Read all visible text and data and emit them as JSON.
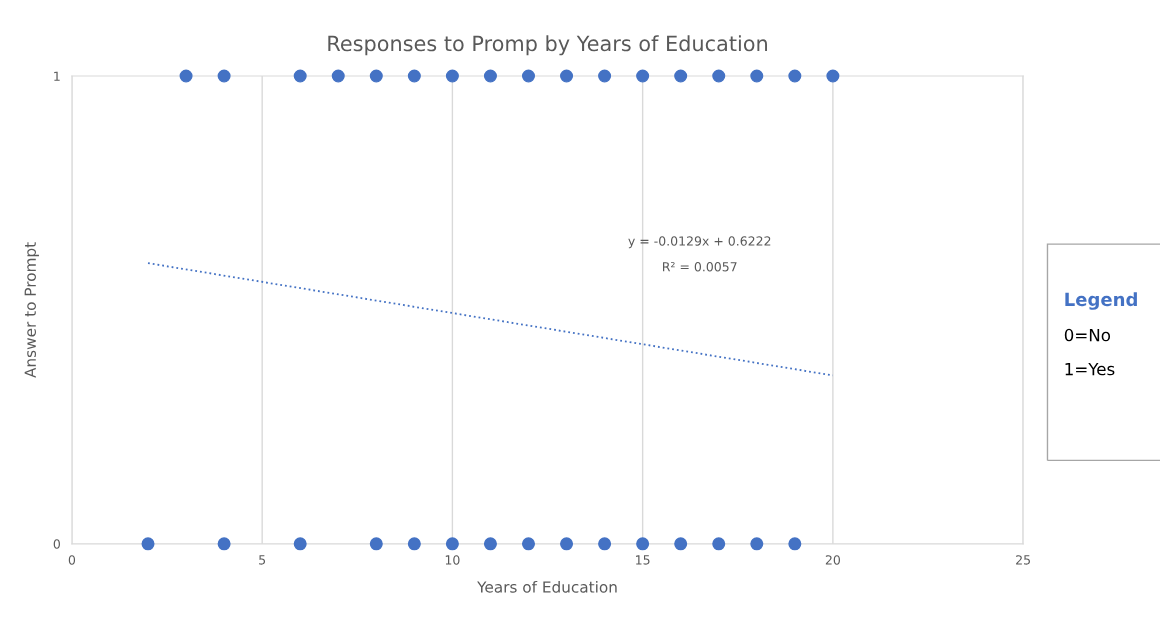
{
  "chart_data": {
    "type": "scatter",
    "title": "Responses to Promp by Years of Education",
    "xlabel": "Years of Education",
    "ylabel": "Answer to Prompt",
    "series": [
      {
        "color": "#4472c4",
        "marker": "circle",
        "x": [
          3,
          4,
          6,
          7,
          8,
          9,
          10,
          11,
          12,
          13,
          14,
          15,
          16,
          17,
          18,
          19,
          20
        ],
        "values": [
          1,
          1,
          1,
          1,
          1,
          1,
          1,
          1,
          1,
          1,
          1,
          1,
          1,
          1,
          1,
          1,
          1
        ]
      },
      {
        "color": "#4472c4",
        "marker": "circle",
        "x": [
          2,
          4,
          6,
          8,
          9,
          10,
          11,
          12,
          13,
          14,
          15,
          16,
          17,
          18,
          19
        ],
        "values": [
          0,
          0,
          0,
          0,
          0,
          0,
          0,
          0,
          0,
          0,
          0,
          0,
          0,
          0,
          0
        ]
      },
      {
        "type": "line",
        "color": "#4472c4",
        "line_style": "dotted",
        "marker": "none",
        "x": [
          2,
          20
        ],
        "values": [
          0.6,
          0.36
        ]
      }
    ],
    "xlim": [
      0,
      25
    ],
    "xticks": [
      0,
      5,
      10,
      15,
      20,
      25
    ],
    "ylim": [
      0,
      1
    ],
    "yticks": [
      0,
      1
    ],
    "grid": "x",
    "annotations": [
      "y = -0.0129x + 0.6222",
      "R² = 0.0057",
      "Legend",
      "0=No",
      "1=Yes"
    ]
  }
}
